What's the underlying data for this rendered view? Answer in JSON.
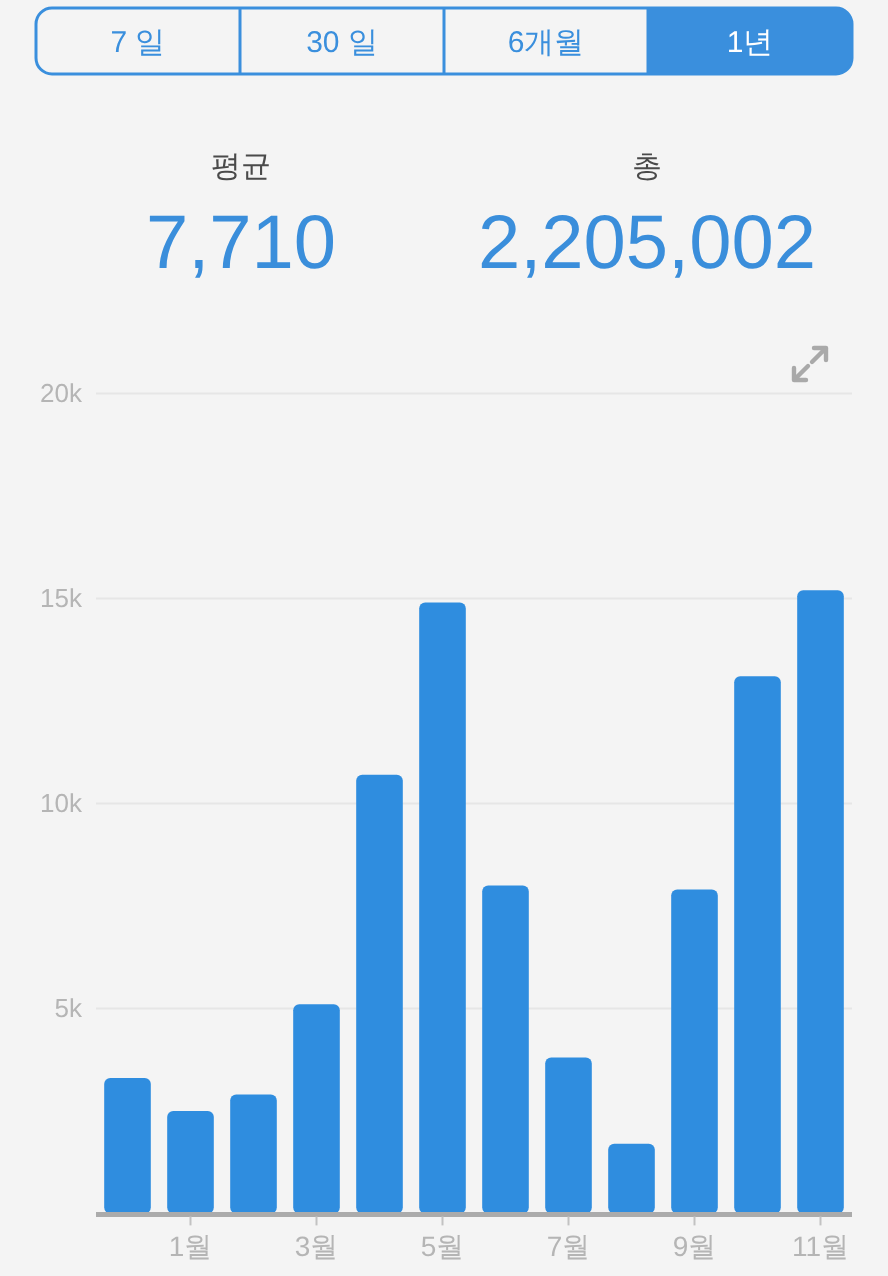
{
  "chart_data": [
    {
      "type": "other",
      "annotations": [
        "7 일",
        "30 일",
        "6개월",
        "1년"
      ]
    },
    {
      "type": "bar",
      "annotations": [
        "평균",
        "7,710",
        "총",
        "2,205,002"
      ],
      "categories": [
        null,
        "1월",
        null,
        "3월",
        null,
        "5월",
        null,
        "7월",
        null,
        "9월",
        null,
        "11월"
      ],
      "values": [
        3300,
        2500,
        2900,
        5100,
        10700,
        14900,
        8000,
        3800,
        1700,
        7900,
        13100,
        15200
      ],
      "color": "#2f8ddf",
      "ylim": [
        0,
        20000
      ],
      "yticks": [
        {
          "value": 5000,
          "label": "5k"
        },
        {
          "value": 10000,
          "label": "10k"
        },
        {
          "value": 15000,
          "label": "15k"
        },
        {
          "value": 20000,
          "label": "20k"
        }
      ],
      "grid": "y"
    }
  ]
}
